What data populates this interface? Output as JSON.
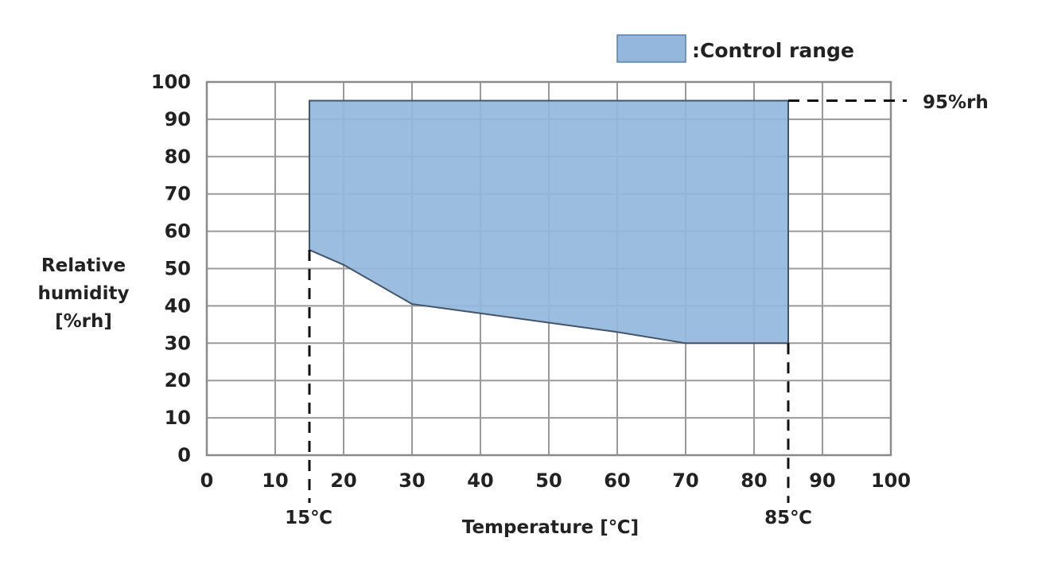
{
  "chart_data": {
    "type": "area",
    "title": "",
    "xlabel": "Temperature [℃]",
    "ylabel": [
      "Relative",
      "humidity",
      "[%rh]"
    ],
    "xlim": [
      0,
      100
    ],
    "ylim": [
      0,
      100
    ],
    "xticks": [
      0,
      10,
      20,
      30,
      40,
      50,
      60,
      70,
      80,
      90,
      100
    ],
    "yticks": [
      0,
      10,
      20,
      30,
      40,
      50,
      60,
      70,
      80,
      90,
      100
    ],
    "grid": true,
    "legend": {
      "label": ":Control range",
      "placement": "top-right"
    },
    "series": [
      {
        "name": "Control range",
        "color": "#93b7dd",
        "boundary": [
          {
            "x": 15,
            "y": 95
          },
          {
            "x": 85,
            "y": 95
          },
          {
            "x": 85,
            "y": 30
          },
          {
            "x": 70,
            "y": 30
          },
          {
            "x": 60,
            "y": 33
          },
          {
            "x": 50,
            "y": 35.5
          },
          {
            "x": 40,
            "y": 38
          },
          {
            "x": 30,
            "y": 40.5
          },
          {
            "x": 20,
            "y": 51
          },
          {
            "x": 15,
            "y": 55
          }
        ]
      }
    ],
    "annotations": {
      "humidity_max": {
        "label": "95%rh",
        "value": 95
      },
      "temp_min": {
        "label": "15℃",
        "value": 15
      },
      "temp_max": {
        "label": "85℃",
        "value": 85
      }
    }
  }
}
